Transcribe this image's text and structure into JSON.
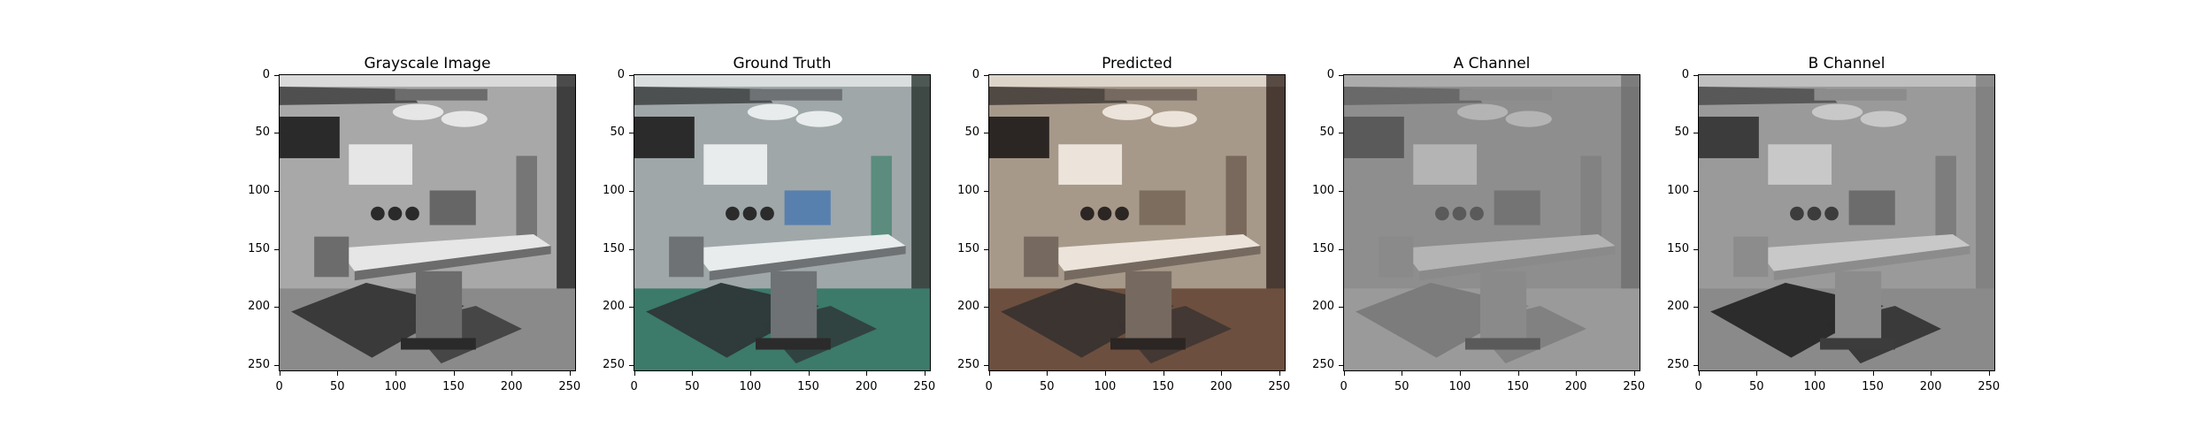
{
  "panels": [
    {
      "title": "Grayscale Image",
      "style": "gray"
    },
    {
      "title": "Ground Truth",
      "style": "truth"
    },
    {
      "title": "Predicted",
      "style": "pred"
    },
    {
      "title": "A Channel",
      "style": "achan"
    },
    {
      "title": "B Channel",
      "style": "bchan"
    }
  ],
  "axes": {
    "xticks": [
      "0",
      "50",
      "100",
      "150",
      "200",
      "250"
    ],
    "yticks": [
      "0",
      "50",
      "100",
      "150",
      "200",
      "250"
    ]
  },
  "colors": {
    "gray_wall": "#a8a8a8",
    "truth_wall": "#9fa7a9",
    "truth_blue": "#3a6fb0",
    "truth_green": "#3c7a6a",
    "pred_wall": "#a7998a",
    "pred_floor": "#6d4f3f",
    "achan_bg": "#8e8e8e",
    "bchan_bg": "#9a9a9a"
  }
}
